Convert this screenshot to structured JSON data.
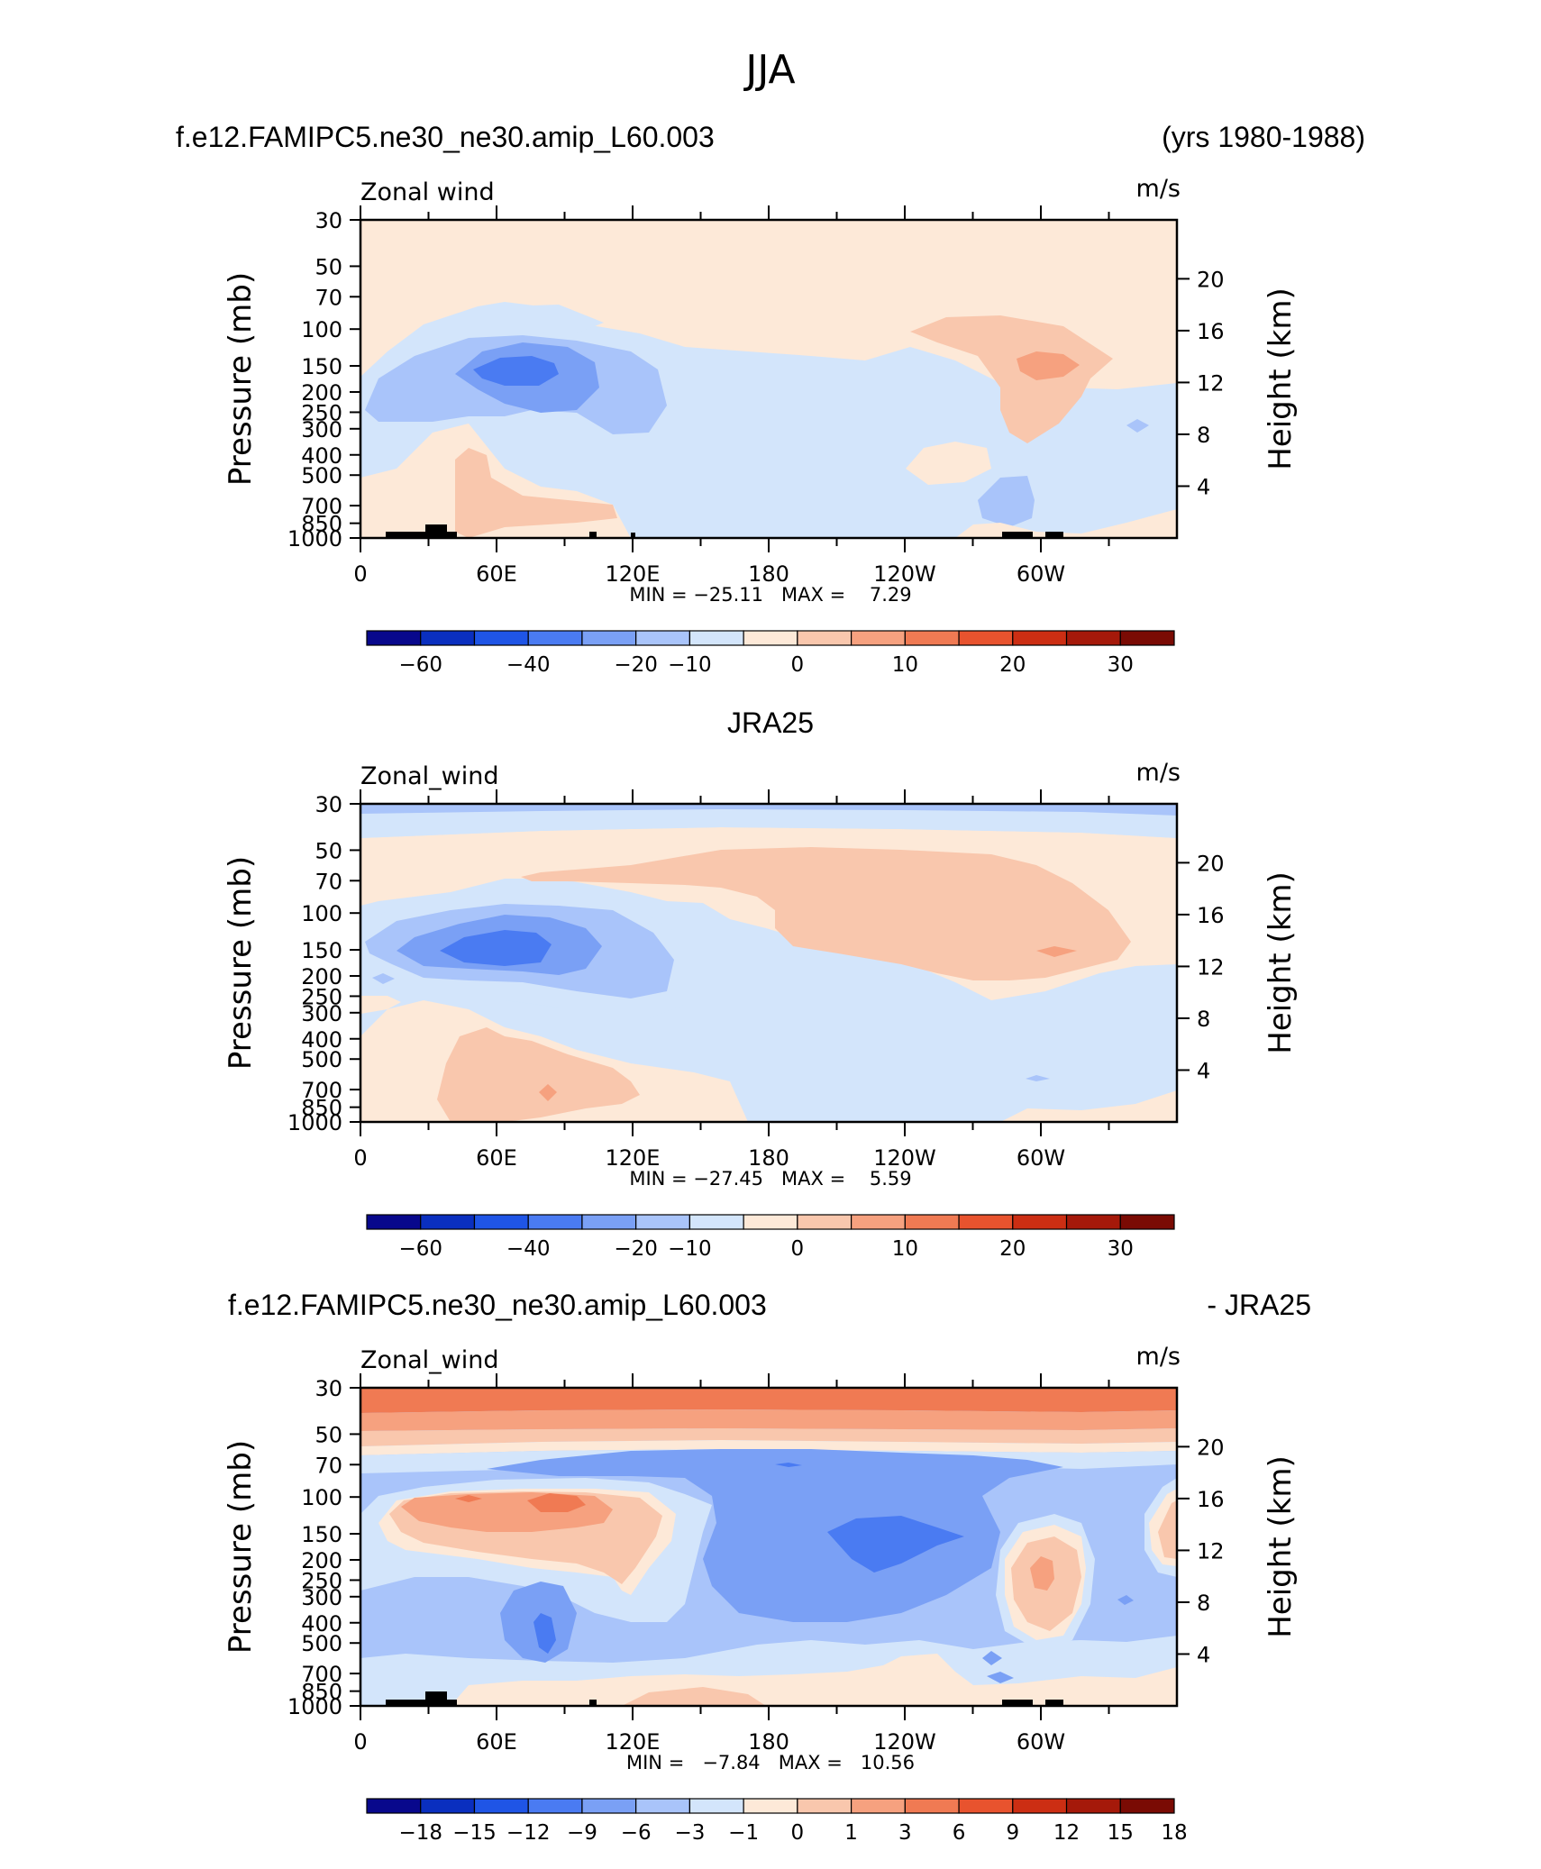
{
  "figure_title": "JJA",
  "panels": [
    {
      "left_title": "f.e12.FAMIPC5.ne30_ne30.amip_L60.003",
      "right_title": "(yrs 1980-1988)",
      "variable": "Zonal wind",
      "units": "m/s",
      "min_max": "MIN = −25.11   MAX =    7.29",
      "colorbar_labels": [
        "−60",
        "−40",
        "−20",
        "−10",
        "0",
        "10",
        "20",
        "30"
      ]
    },
    {
      "left_title": "",
      "center_title": "JRA25",
      "variable": "Zonal_wind",
      "units": "m/s",
      "min_max": "MIN = −27.45   MAX =    5.59",
      "colorbar_labels": [
        "−60",
        "−40",
        "−20",
        "−10",
        "0",
        "10",
        "20",
        "30"
      ]
    },
    {
      "left_title": "f.e12.FAMIPC5.ne30_ne30.amip_L60.003",
      "right_title": "- JRA25",
      "variable": "Zonal_wind",
      "units": "m/s",
      "min_max": "MIN =   −7.84   MAX =   10.56",
      "colorbar_labels": [
        "−18",
        "−15",
        "−12",
        "−9",
        "−6",
        "−3",
        "−1",
        "0",
        "1",
        "3",
        "6",
        "9",
        "12",
        "15",
        "18"
      ]
    }
  ],
  "axes": {
    "ylabel_left": "Pressure  (mb)",
    "ylabel_right": "Height  (km)",
    "pressure_ticks": [
      "30",
      "50",
      "70",
      "100",
      "150",
      "200",
      "250",
      "300",
      "400",
      "500",
      "700",
      "850",
      "1000"
    ],
    "height_ticks": [
      "20",
      "16",
      "12",
      "8",
      "4"
    ],
    "lon_ticks": [
      "0",
      "60E",
      "120E",
      "180",
      "120W",
      "60W"
    ]
  },
  "colors": {
    "palette_full": [
      "#08088c",
      "#0a2fbf",
      "#1f55e6",
      "#4a7bf2",
      "#7aa0f5",
      "#a9c4fa",
      "#d3e5fb",
      "#fde9d8",
      "#f9c7ad",
      "#f6a17f",
      "#f07a53",
      "#e8532e",
      "#cc2e13",
      "#a5190a",
      "#7a0b04"
    ],
    "palette_diff": [
      "#08088c",
      "#0a2fbf",
      "#1f55e6",
      "#4a7bf2",
      "#7aa0f5",
      "#a9c4fa",
      "#d3e5fb",
      "#fde9d8",
      "#f9c7ad",
      "#f6a17f",
      "#f07a53",
      "#e8532e",
      "#cc2e13",
      "#a5190a",
      "#7a0b04"
    ]
  },
  "chart_data": [
    {
      "type": "heatmap",
      "title": "f.e12.FAMIPC5.ne30_ne30.amip_L60.003 (yrs 1980-1988)",
      "variable": "Zonal wind",
      "units": "m/s",
      "x_range": [
        0,
        360
      ],
      "x_ticks": [
        "0",
        "60E",
        "120E",
        "180",
        "120W",
        "60W"
      ],
      "y_range_mb": [
        1000,
        30
      ],
      "min": -25.11,
      "max": 7.29,
      "levels": [
        -70,
        -60,
        -50,
        -40,
        -30,
        -20,
        -15,
        -10,
        -5,
        0,
        5,
        10,
        15,
        20,
        25,
        30,
        35
      ]
    },
    {
      "type": "heatmap",
      "title": "JRA25",
      "variable": "Zonal_wind",
      "units": "m/s",
      "x_range": [
        0,
        360
      ],
      "x_ticks": [
        "0",
        "60E",
        "120E",
        "180",
        "120W",
        "60W"
      ],
      "y_range_mb": [
        1000,
        30
      ],
      "min": -27.45,
      "max": 5.59,
      "levels": [
        -70,
        -60,
        -50,
        -40,
        -30,
        -20,
        -15,
        -10,
        -5,
        0,
        5,
        10,
        15,
        20,
        25,
        30,
        35
      ]
    },
    {
      "type": "heatmap",
      "title": "f.e12.FAMIPC5.ne30_ne30.amip_L60.003 - JRA25",
      "variable": "Zonal_wind",
      "units": "m/s",
      "x_range": [
        0,
        360
      ],
      "x_ticks": [
        "0",
        "60E",
        "120E",
        "180",
        "120W",
        "60W"
      ],
      "y_range_mb": [
        1000,
        30
      ],
      "min": -7.84,
      "max": 10.56,
      "levels": [
        -18,
        -15,
        -12,
        -9,
        -6,
        -3,
        -1,
        0,
        1,
        3,
        6,
        9,
        12,
        15,
        18
      ]
    }
  ]
}
